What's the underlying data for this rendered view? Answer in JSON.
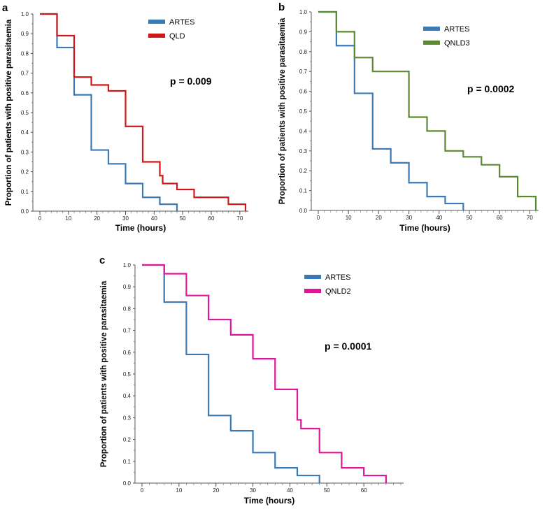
{
  "chart_data": [
    {
      "type": "line",
      "panel_label": "a",
      "xlabel": "Time (hours)",
      "ylabel": "Proportion of patients with positive parasitaemia",
      "xlim": [
        0,
        72
      ],
      "ylim": [
        0,
        1.0
      ],
      "x_ticks": [
        0,
        10,
        20,
        30,
        40,
        50,
        60,
        70
      ],
      "y_ticks": [
        0.0,
        0.1,
        0.2,
        0.3,
        0.4,
        0.5,
        0.6,
        0.7,
        0.8,
        0.9,
        1.0
      ],
      "annotation": "p = 0.009",
      "legend_position": "top-right",
      "series": [
        {
          "name": "ARTES",
          "color": "#3a79b8",
          "x": [
            0,
            6,
            12,
            18,
            24,
            30,
            36,
            42,
            48
          ],
          "y": [
            1.0,
            0.83,
            0.59,
            0.31,
            0.24,
            0.14,
            0.07,
            0.035,
            0.0
          ]
        },
        {
          "name": "QLD",
          "color": "#d01818",
          "x": [
            0,
            6,
            12,
            18,
            24,
            30,
            36,
            42,
            43,
            48,
            54,
            66,
            72
          ],
          "y": [
            1.0,
            0.89,
            0.68,
            0.64,
            0.61,
            0.43,
            0.25,
            0.18,
            0.14,
            0.11,
            0.07,
            0.035,
            0.0
          ]
        }
      ]
    },
    {
      "type": "line",
      "panel_label": "b",
      "xlabel": "Time (hours)",
      "ylabel": "Proportion of patients with positive parasitaemia",
      "xlim": [
        0,
        72
      ],
      "ylim": [
        0,
        1.0
      ],
      "x_ticks": [
        0,
        10,
        20,
        30,
        40,
        50,
        60,
        70
      ],
      "y_ticks": [
        0.0,
        0.1,
        0.2,
        0.3,
        0.4,
        0.5,
        0.6,
        0.7,
        0.8,
        0.9,
        1.0
      ],
      "annotation": "p = 0.0002",
      "legend_position": "top-right",
      "series": [
        {
          "name": "ARTES",
          "color": "#3a79b8",
          "x": [
            0,
            6,
            12,
            18,
            24,
            30,
            36,
            42,
            48
          ],
          "y": [
            1.0,
            0.83,
            0.59,
            0.31,
            0.24,
            0.14,
            0.07,
            0.035,
            0.0
          ]
        },
        {
          "name": "QNLD3",
          "color": "#5a8a30",
          "x": [
            0,
            6,
            12,
            18,
            30,
            36,
            42,
            48,
            54,
            60,
            66,
            72
          ],
          "y": [
            1.0,
            0.9,
            0.77,
            0.7,
            0.47,
            0.4,
            0.3,
            0.27,
            0.23,
            0.17,
            0.07,
            0.0
          ]
        }
      ]
    },
    {
      "type": "line",
      "panel_label": "c",
      "xlabel": "Time (hours)",
      "ylabel": "Proportion of patients with positive parasitaemia",
      "xlim": [
        0,
        70
      ],
      "ylim": [
        0,
        1.0
      ],
      "x_ticks": [
        0,
        10,
        20,
        30,
        40,
        50,
        60
      ],
      "y_ticks": [
        0.0,
        0.1,
        0.2,
        0.3,
        0.4,
        0.5,
        0.6,
        0.7,
        0.8,
        0.9,
        1.0
      ],
      "annotation": "p = 0.0001",
      "legend_position": "top-right",
      "series": [
        {
          "name": "ARTES",
          "color": "#3a79b8",
          "x": [
            0,
            6,
            12,
            18,
            24,
            30,
            36,
            42,
            48
          ],
          "y": [
            1.0,
            0.83,
            0.59,
            0.31,
            0.24,
            0.14,
            0.07,
            0.035,
            0.0
          ]
        },
        {
          "name": "QNLD2",
          "color": "#e0169a",
          "x": [
            0,
            6,
            12,
            18,
            24,
            30,
            36,
            42,
            43,
            48,
            54,
            60,
            66
          ],
          "y": [
            1.0,
            0.96,
            0.86,
            0.75,
            0.68,
            0.57,
            0.43,
            0.29,
            0.25,
            0.14,
            0.07,
            0.035,
            0.0
          ]
        }
      ]
    }
  ]
}
